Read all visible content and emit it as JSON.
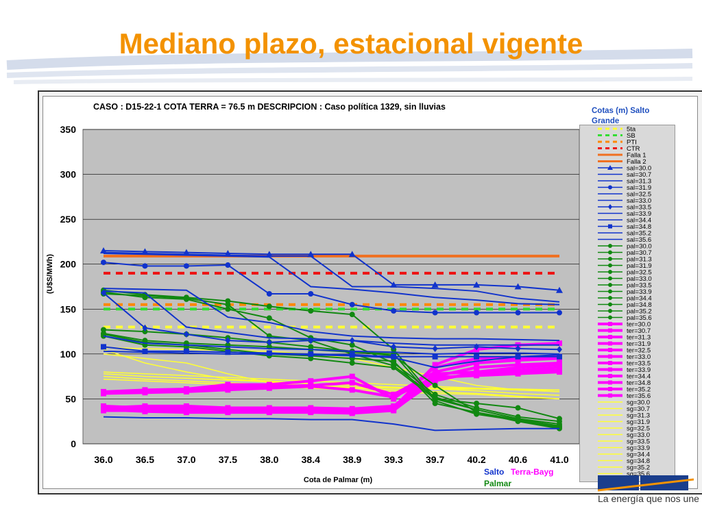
{
  "slide": {
    "title": "Mediano plazo, estacional vigente",
    "logo_tagline": "La energía que nos une"
  },
  "chart_data": {
    "type": "line",
    "title": "CASO : D15-22-1 COTA TERRA = 76.5 m  DESCRIPCION :    Caso política 1329, sin lluvias",
    "xlabel": "Cota de Palmar (m)",
    "ylabel": "(U$S/MWh)",
    "categories": [
      "36.0",
      "36.5",
      "37.0",
      "37.5",
      "38.0",
      "38.4",
      "38.9",
      "39.3",
      "39.7",
      "40.2",
      "40.6",
      "41.0"
    ],
    "ylim": [
      0,
      350
    ],
    "yticks": [
      0,
      50,
      100,
      150,
      200,
      250,
      300,
      350
    ],
    "grid": true,
    "legend_title": "Cotas (m) Salto Grande",
    "legend_position": "right",
    "legend": [
      "5ta",
      "SB",
      "PTI",
      "CTR",
      "Falla 1",
      "Falla 2",
      "sal=30.0",
      "sal=30.7",
      "sal=31.3",
      "sal=31.9",
      "sal=32.5",
      "sal=33.0",
      "sal=33.5",
      "sal=33.9",
      "sal=34.4",
      "sal=34.8",
      "sal=35.2",
      "sal=35.6",
      "pal=30.0",
      "pal=30.7",
      "pal=31.3",
      "pal=31.9",
      "pal=32.5",
      "pal=33.0",
      "pal=33.5",
      "pal=33.9",
      "pal=34.4",
      "pal=34.8",
      "pal=35.2",
      "pal=35.6",
      "ter=30.0",
      "ter=30.7",
      "ter=31.3",
      "ter=31.9",
      "ter=32.5",
      "ter=33.0",
      "ter=33.5",
      "ter=33.9",
      "ter=34.4",
      "ter=34.8",
      "ter=35.2",
      "ter=35.6",
      "sg=30.0",
      "sg=30.7",
      "sg=31.3",
      "sg=31.9",
      "sg=32.5",
      "sg=33.0",
      "sg=33.5",
      "sg=33.9",
      "sg=34.4",
      "sg=34.8",
      "sg=35.2",
      "sg=35.6"
    ],
    "group_labels": {
      "salto": "Salto",
      "terra": "Terra-Bayg",
      "palmar": "Palmar"
    },
    "colors": {
      "5ta": "#ffff33",
      "SB": "#33dd33",
      "PTI": "#ff8800",
      "CTR": "#ee1111",
      "falla": "#f07020",
      "sal": "#1133cc",
      "pal": "#118811",
      "ter": "#ff00ff",
      "sg": "#ffff33"
    },
    "reference_lines": [
      {
        "name": "5ta",
        "value": 130,
        "style": "dash"
      },
      {
        "name": "SB",
        "value": 150,
        "style": "dash"
      },
      {
        "name": "PTI",
        "value": 155,
        "style": "dash"
      },
      {
        "name": "CTR",
        "value": 190,
        "style": "dash"
      },
      {
        "name": "Falla 1",
        "value": 209,
        "style": "solid"
      }
    ],
    "series": [
      {
        "group": "sal",
        "marker": "triangle",
        "values": [
          215,
          214,
          213,
          212,
          211,
          211,
          211,
          177,
          177,
          177,
          175,
          171
        ]
      },
      {
        "group": "sal",
        "marker": "none",
        "values": [
          213,
          212,
          211,
          210,
          209,
          209,
          175,
          175,
          173,
          170,
          162,
          158
        ]
      },
      {
        "group": "sal",
        "marker": "none",
        "values": [
          212,
          211,
          210,
          209,
          208,
          175,
          172,
          168,
          163,
          160,
          156,
          155
        ]
      },
      {
        "group": "sal",
        "marker": "circle",
        "values": [
          202,
          198,
          198,
          199,
          167,
          167,
          155,
          148,
          146,
          146,
          146,
          146
        ]
      },
      {
        "group": "sal",
        "marker": "none",
        "values": [
          173,
          172,
          171,
          141,
          135,
          125,
          120,
          118,
          117,
          117,
          116,
          115
        ]
      },
      {
        "group": "sal",
        "marker": "none",
        "values": [
          170,
          168,
          130,
          124,
          118,
          117,
          115,
          112,
          110,
          110,
          110,
          110
        ]
      },
      {
        "group": "sal",
        "marker": "diamond",
        "values": [
          168,
          129,
          122,
          115,
          113,
          115,
          115,
          108,
          106,
          108,
          106,
          105
        ]
      },
      {
        "group": "sal",
        "marker": "none",
        "values": [
          120,
          112,
          110,
          108,
          106,
          105,
          103,
          102,
          100,
          101,
          101,
          100
        ]
      },
      {
        "group": "sal",
        "marker": "square",
        "values": [
          108,
          103,
          103,
          102,
          101,
          100,
          99,
          97,
          97,
          97,
          97,
          97
        ]
      },
      {
        "group": "sal",
        "marker": "none",
        "values": [
          103,
          102,
          101,
          100,
          100,
          99,
          98,
          96,
          85,
          92,
          97,
          99
        ]
      },
      {
        "group": "sal",
        "marker": "none",
        "values": [
          30,
          29,
          29,
          28,
          28,
          27,
          27,
          22,
          15,
          16,
          17,
          17
        ]
      },
      {
        "group": "pal",
        "marker": "circle",
        "values": [
          171,
          166,
          163,
          159,
          153,
          148,
          144,
          105,
          50,
          45,
          40,
          28
        ]
      },
      {
        "group": "pal",
        "marker": "circle",
        "values": [
          169,
          163,
          161,
          150,
          140,
          118,
          110,
          90,
          55,
          40,
          30,
          25
        ]
      },
      {
        "group": "pal",
        "marker": "circle",
        "values": [
          167,
          165,
          162,
          155,
          120,
          115,
          100,
          87,
          52,
          38,
          28,
          22
        ]
      },
      {
        "group": "pal",
        "marker": "circle",
        "values": [
          127,
          125,
          122,
          118,
          113,
          108,
          103,
          98,
          65,
          35,
          27,
          20
        ]
      },
      {
        "group": "pal",
        "marker": "circle",
        "values": [
          123,
          115,
          112,
          110,
          108,
          105,
          102,
          100,
          48,
          33,
          26,
          18
        ]
      },
      {
        "group": "pal",
        "marker": "circle",
        "values": [
          122,
          113,
          110,
          105,
          100,
          98,
          95,
          92,
          45,
          35,
          25,
          17
        ]
      },
      {
        "group": "pal",
        "marker": "circle",
        "values": [
          120,
          110,
          108,
          103,
          98,
          95,
          90,
          85,
          50,
          38,
          28,
          19
        ]
      },
      {
        "group": "ter",
        "marker": "square",
        "values": [
          58,
          60,
          61,
          66,
          66,
          70,
          75,
          50,
          85,
          95,
          95,
          97
        ]
      },
      {
        "group": "ter",
        "marker": "square",
        "values": [
          57,
          58,
          59,
          63,
          64,
          65,
          68,
          55,
          80,
          90,
          93,
          95
        ]
      },
      {
        "group": "ter",
        "marker": "square",
        "values": [
          56,
          57,
          58,
          60,
          62,
          64,
          60,
          52,
          75,
          85,
          88,
          90
        ]
      },
      {
        "group": "ter",
        "marker": "square",
        "values": [
          40,
          38,
          37,
          36,
          36,
          36,
          35,
          38,
          70,
          80,
          85,
          88
        ]
      },
      {
        "group": "ter",
        "marker": "square",
        "values": [
          38,
          36,
          35,
          35,
          35,
          35,
          34,
          37,
          72,
          78,
          80,
          82
        ]
      },
      {
        "group": "ter",
        "marker": "square",
        "values": [
          42,
          40,
          40,
          38,
          38,
          38,
          37,
          40,
          74,
          76,
          78,
          80
        ]
      },
      {
        "group": "ter",
        "marker": "square",
        "values": [
          40,
          42,
          42,
          40,
          40,
          40,
          39,
          42,
          78,
          80,
          82,
          85
        ]
      },
      {
        "group": "ter",
        "marker": "square",
        "values": [
          37,
          37,
          36,
          36,
          36,
          36,
          35,
          40,
          88,
          105,
          110,
          112
        ]
      },
      {
        "group": "sg",
        "marker": "none",
        "values": [
          107,
          106,
          105,
          104,
          103,
          100,
          95,
          85,
          75,
          65,
          60,
          58
        ]
      },
      {
        "group": "sg",
        "marker": "none",
        "values": [
          80,
          78,
          76,
          74,
          72,
          70,
          68,
          66,
          64,
          62,
          60,
          58
        ]
      },
      {
        "group": "sg",
        "marker": "none",
        "values": [
          78,
          75,
          73,
          71,
          69,
          67,
          65,
          63,
          61,
          59,
          56,
          54
        ]
      },
      {
        "group": "sg",
        "marker": "none",
        "values": [
          75,
          72,
          70,
          68,
          66,
          64,
          62,
          60,
          58,
          56,
          53,
          50
        ]
      },
      {
        "group": "sg",
        "marker": "none",
        "values": [
          72,
          70,
          68,
          66,
          64,
          62,
          60,
          58,
          56,
          55,
          52,
          50
        ]
      },
      {
        "group": "sg",
        "marker": "none",
        "values": [
          105,
          90,
          80,
          72,
          70,
          67,
          65,
          63,
          62,
          62,
          61,
          60
        ]
      },
      {
        "group": "sg",
        "marker": "none",
        "values": [
          100,
          95,
          90,
          78,
          68,
          65,
          63,
          62,
          61,
          61,
          60,
          60
        ]
      }
    ]
  }
}
